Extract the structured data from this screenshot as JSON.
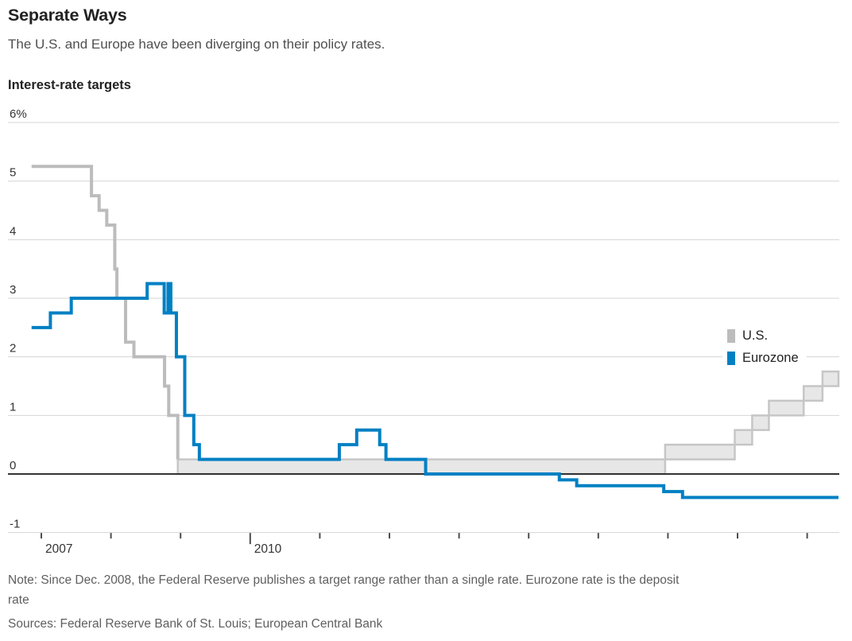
{
  "header": {
    "title": "Separate Ways",
    "subtitle": "The U.S. and Europe have been diverging on their policy rates."
  },
  "chart": {
    "label": "Interest-rate targets"
  },
  "legend": {
    "position": "right",
    "entries": [
      {
        "id": "us",
        "label": "U.S.",
        "color": "#bcbcbc"
      },
      {
        "id": "eurozone",
        "label": "Eurozone",
        "color": "#0080c3"
      }
    ]
  },
  "chart_data": {
    "type": "line",
    "subtype": "step",
    "title": "Interest-rate targets",
    "unit": "%",
    "ylim": [
      -1,
      6
    ],
    "x_domain": [
      2006.86,
      2018.45
    ],
    "grid": "horizontal",
    "yticks": [
      {
        "value": 6,
        "label": "6%"
      },
      {
        "value": 5,
        "label": "5"
      },
      {
        "value": 4,
        "label": "4"
      },
      {
        "value": 3,
        "label": "3"
      },
      {
        "value": 2,
        "label": "2"
      },
      {
        "value": 1,
        "label": "1"
      },
      {
        "value": 0,
        "label": "0"
      },
      {
        "value": -1,
        "label": "-1"
      }
    ],
    "zero_line": {
      "value": 0,
      "color": "#333333"
    },
    "xticks": [
      {
        "year": 2007,
        "label": "2007"
      },
      {
        "year": 2008
      },
      {
        "year": 2009
      },
      {
        "year": 2010,
        "label": "2010",
        "long": true
      },
      {
        "year": 2011
      },
      {
        "year": 2012
      },
      {
        "year": 2013
      },
      {
        "year": 2014
      },
      {
        "year": 2015
      },
      {
        "year": 2016
      },
      {
        "year": 2017
      },
      {
        "year": 2018
      }
    ],
    "series": [
      {
        "name": "U.S.",
        "color": "#bcbcbc",
        "line_width": 4,
        "points": [
          [
            2006.86,
            5.25
          ],
          [
            2007.72,
            4.75
          ],
          [
            2007.83,
            4.5
          ],
          [
            2007.94,
            4.25
          ],
          [
            2008.055,
            3.5
          ],
          [
            2008.085,
            3.0
          ],
          [
            2008.21,
            2.25
          ],
          [
            2008.33,
            2.0
          ],
          [
            2008.77,
            1.5
          ],
          [
            2008.83,
            1.0
          ],
          [
            2008.96,
            0.25
          ]
        ],
        "band": {
          "description": "target range low/high since Dec. 2008",
          "fill": "#e7e7e7",
          "stroke": "#c6c6c6",
          "points": [
            [
              2008.96,
              0.0,
              0.25
            ],
            [
              2015.96,
              0.25,
              0.5
            ],
            [
              2016.96,
              0.5,
              0.75
            ],
            [
              2017.21,
              0.75,
              1.0
            ],
            [
              2017.45,
              1.0,
              1.25
            ],
            [
              2017.95,
              1.25,
              1.5
            ],
            [
              2018.22,
              1.5,
              1.75
            ]
          ]
        }
      },
      {
        "name": "Eurozone",
        "color": "#0080c3",
        "line_width": 4,
        "extend_to_end": true,
        "points": [
          [
            2006.86,
            2.5
          ],
          [
            2007.13,
            2.75
          ],
          [
            2007.43,
            3.0
          ],
          [
            2008.52,
            3.25
          ],
          [
            2008.765,
            2.75
          ],
          [
            2008.82,
            3.25
          ],
          [
            2008.86,
            2.75
          ],
          [
            2008.94,
            2.0
          ],
          [
            2009.06,
            1.0
          ],
          [
            2009.19,
            0.5
          ],
          [
            2009.27,
            0.25
          ],
          [
            2011.28,
            0.5
          ],
          [
            2011.53,
            0.75
          ],
          [
            2011.86,
            0.5
          ],
          [
            2011.95,
            0.25
          ],
          [
            2012.52,
            0.0
          ],
          [
            2014.44,
            -0.1
          ],
          [
            2014.69,
            -0.2
          ],
          [
            2015.94,
            -0.3
          ],
          [
            2016.21,
            -0.4
          ]
        ]
      }
    ]
  },
  "footer": {
    "note": "Note: Since Dec. 2008, the Federal Reserve publishes a target range rather than a single rate. Eurozone rate is the deposit\nrate",
    "sources": "Sources: Federal Reserve Bank of St. Louis; European Central Bank"
  }
}
